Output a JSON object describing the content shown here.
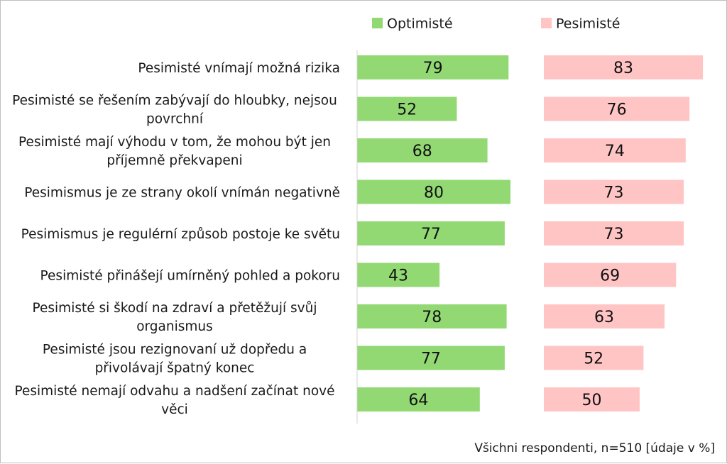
{
  "chart_data": {
    "type": "bar",
    "orientation": "horizontal",
    "grid": false,
    "legend_position": "top",
    "categories": [
      [
        "Pesimisté vnímají možná rizika"
      ],
      [
        "Pesimisté se řešením zabývají do hloubky, nejsou",
        "povrchní"
      ],
      [
        "Pesimisté mají výhodu v tom, že mohou být jen",
        "příjemně překvapeni"
      ],
      [
        "Pesimismus je ze strany okolí vnímán negativně"
      ],
      [
        "Pesimismus je regulérní způsob postoje ke světu"
      ],
      [
        "Pesimisté přinášejí umírněný pohled a pokoru"
      ],
      [
        "Pesimisté si škodí na zdraví a přetěžují svůj",
        "organismus"
      ],
      [
        "Pesimisté jsou rezignovaní už dopředu a",
        "přivolávají špatný konec"
      ],
      [
        "Pesimisté nemají odvahu a nadšení začínat nové",
        "věci"
      ]
    ],
    "series": [
      {
        "name": "Optimisté",
        "color": "#92d873",
        "values": [
          79,
          52,
          68,
          80,
          77,
          43,
          78,
          77,
          64
        ]
      },
      {
        "name": "Pesimisté",
        "color": "#ffc5c5",
        "values": [
          83,
          76,
          74,
          73,
          73,
          69,
          63,
          52,
          50
        ]
      }
    ],
    "xlim": [
      0,
      100
    ],
    "footnote": "Všichni respondenti, n=510 [údaje v %]"
  }
}
